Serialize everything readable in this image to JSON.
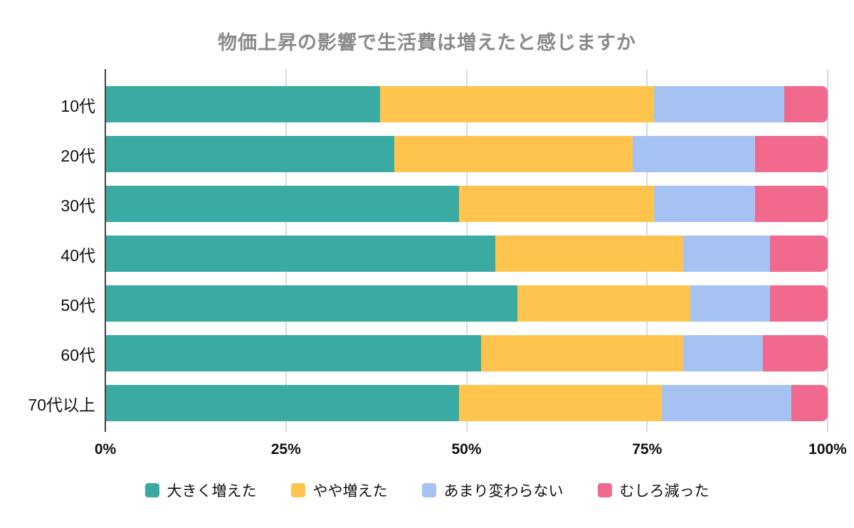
{
  "chart_data": {
    "type": "bar",
    "stacked": true,
    "orientation": "horizontal",
    "title": "物価上昇の影響で生活費は増えたと感じますか",
    "categories": [
      "10代",
      "20代",
      "30代",
      "40代",
      "50代",
      "60代",
      "70代以上"
    ],
    "series": [
      {
        "name": "大きく増えた",
        "color": "#3aaba2",
        "values": [
          38,
          40,
          49,
          54,
          57,
          52,
          49
        ]
      },
      {
        "name": "やや増えた",
        "color": "#ffc44d",
        "values": [
          38,
          33,
          27,
          26,
          24,
          28,
          28
        ]
      },
      {
        "name": "あまり変わらない",
        "color": "#a5c2f3",
        "values": [
          18,
          17,
          14,
          12,
          11,
          11,
          18
        ]
      },
      {
        "name": "むしろ減った",
        "color": "#f1698c",
        "values": [
          6,
          10,
          10,
          8,
          8,
          9,
          5
        ]
      }
    ],
    "x_axis": {
      "range": [
        0,
        100
      ],
      "tick_values": [
        0,
        25,
        50,
        75,
        100
      ],
      "tick_labels": [
        "0%",
        "25%",
        "50%",
        "75%",
        "100%"
      ]
    },
    "legend_position": "bottom",
    "grid": true,
    "colors": {
      "gridline": "#dadada",
      "axis_line": "#3f3f3f",
      "title_text": "#8a8a8a",
      "label_text": "#111111"
    }
  }
}
